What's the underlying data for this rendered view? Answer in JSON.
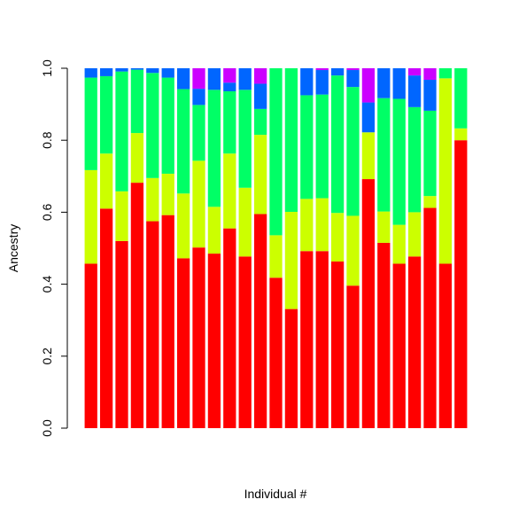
{
  "chart_data": {
    "type": "bar",
    "stacked": true,
    "title": "",
    "xlabel": "Individual #",
    "ylabel": "Ancestry",
    "ylim": [
      0,
      1
    ],
    "yticks": [
      "0.0",
      "0.2",
      "0.4",
      "0.6",
      "0.8",
      "1.0"
    ],
    "grid": false,
    "legend": "none",
    "series_colors": [
      "#ff0000",
      "#ccff00",
      "#00ff66",
      "#0066ff",
      "#cc00ff"
    ],
    "series": [
      {
        "values": [
          0.457,
          0.61,
          0.52,
          0.682,
          0.575,
          0.592,
          0.472,
          0.502,
          0.485,
          0.555,
          0.477,
          0.595,
          0.418,
          0.331,
          0.492,
          0.492,
          0.463,
          0.396,
          0.692,
          0.515,
          0.457,
          0.477,
          0.612,
          0.457,
          0.8
        ]
      },
      {
        "values": [
          0.26,
          0.153,
          0.138,
          0.138,
          0.12,
          0.115,
          0.18,
          0.241,
          0.13,
          0.208,
          0.191,
          0.22,
          0.118,
          0.27,
          0.145,
          0.147,
          0.135,
          0.194,
          0.13,
          0.087,
          0.108,
          0.123,
          0.033,
          0.515,
          0.033
        ]
      },
      {
        "values": [
          0.257,
          0.215,
          0.333,
          0.176,
          0.292,
          0.267,
          0.29,
          0.155,
          0.325,
          0.173,
          0.272,
          0.072,
          0.464,
          0.399,
          0.288,
          0.288,
          0.382,
          0.358,
          0.0,
          0.315,
          0.35,
          0.292,
          0.237,
          0.028,
          0.167
        ]
      },
      {
        "values": [
          0.026,
          0.022,
          0.009,
          0.004,
          0.013,
          0.026,
          0.058,
          0.045,
          0.06,
          0.024,
          0.06,
          0.07,
          0.0,
          0.0,
          0.075,
          0.068,
          0.02,
          0.047,
          0.083,
          0.083,
          0.085,
          0.088,
          0.086,
          0.0,
          0.0
        ]
      },
      {
        "values": [
          0.0,
          0.0,
          0.0,
          0.0,
          0.0,
          0.0,
          0.0,
          0.057,
          0.0,
          0.04,
          0.0,
          0.043,
          0.0,
          0.0,
          0.0,
          0.005,
          0.0,
          0.005,
          0.095,
          0.0,
          0.0,
          0.02,
          0.032,
          0.0,
          0.0
        ]
      }
    ]
  }
}
